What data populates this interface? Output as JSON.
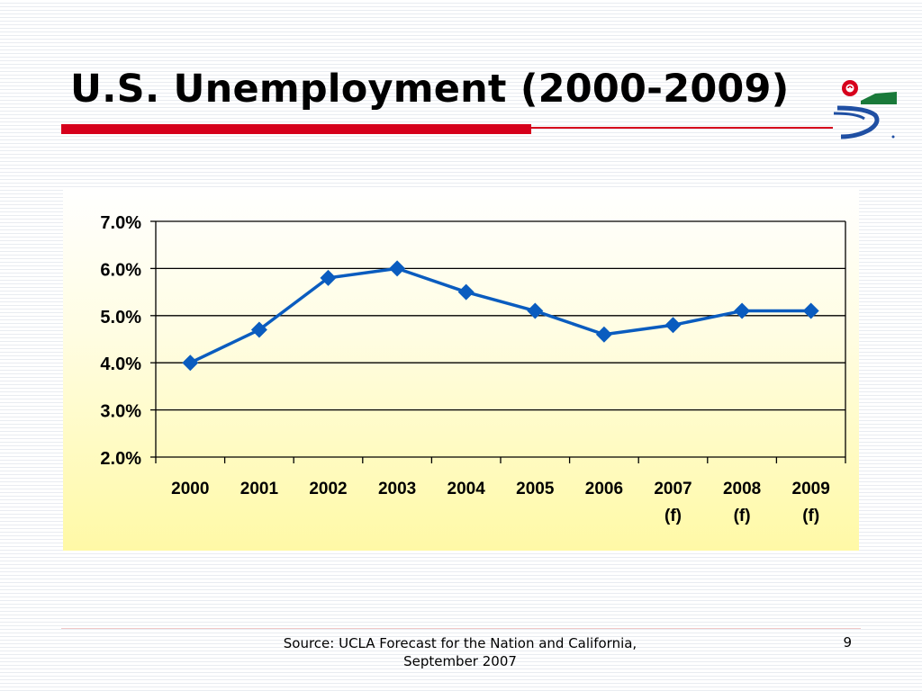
{
  "slide": {
    "title": "U.S. Unemployment (2000-2009)",
    "source": "Source: UCLA Forecast for the Nation and California, September 2007",
    "page_number": "9"
  },
  "colors": {
    "title_bar": "#d6001c",
    "series_line": "#0a5cbf",
    "logo_red": "#d6001c",
    "logo_green": "#1a7a3a",
    "logo_blue": "#1f4fa3"
  },
  "chart_data": {
    "type": "line",
    "categories": [
      "2000",
      "2001",
      "2002",
      "2003",
      "2004",
      "2005",
      "2006",
      "2007\n(f)",
      "2008\n(f)",
      "2009\n(f)"
    ],
    "series": [
      {
        "values": [
          4.0,
          4.7,
          5.8,
          6.0,
          5.5,
          5.1,
          4.6,
          4.8,
          5.1,
          5.1
        ]
      }
    ],
    "ylim": [
      2.0,
      7.0
    ],
    "ytick_labels": [
      "2.0%",
      "3.0%",
      "4.0%",
      "5.0%",
      "6.0%",
      "7.0%"
    ],
    "grid": true,
    "marker": "diamond",
    "legend": "none"
  }
}
